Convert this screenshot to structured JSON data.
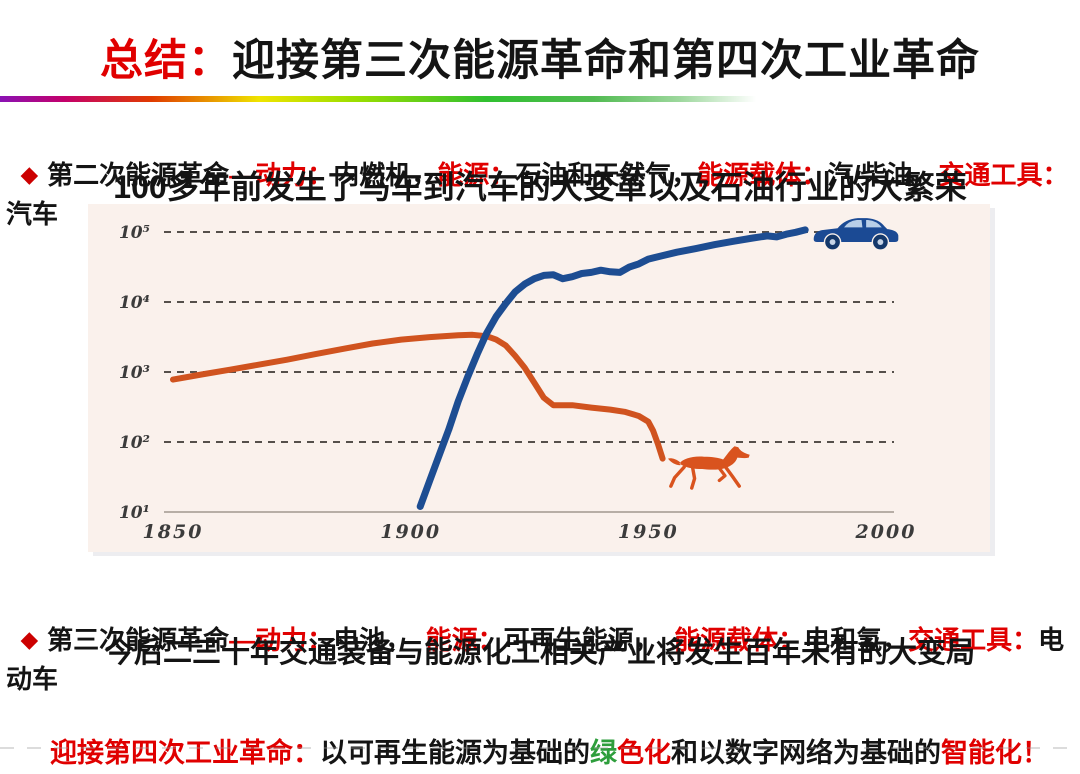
{
  "palette": {
    "emphasis_red": "#e00000",
    "body_black": "#141414",
    "emphasis_green": "#2e9e3c",
    "bullet_red": "#cc0000",
    "chart_background": "#faf1ec",
    "car_line_blue": "#1d4d92",
    "horse_line_orange": "#d0531f"
  },
  "icons": {
    "bullet_marker": "◆",
    "chart_end_car": "car-silhouette",
    "chart_end_horse": "horse-silhouette"
  },
  "title": {
    "prefix": "总结：",
    "main": "迎接第三次能源革命和第四次工业革命"
  },
  "bullets": [
    {
      "marker": "◆",
      "segments": [
        {
          "text": "第二次能源革命",
          "color": "black"
        },
        {
          "text": "—动力：",
          "color": "red"
        },
        {
          "text": "内燃机，",
          "color": "black"
        },
        {
          "text": "能源：",
          "color": "red"
        },
        {
          "text": "石油和天然气，",
          "color": "black"
        },
        {
          "text": "能源载体：",
          "color": "red"
        },
        {
          "text": "汽/柴油，",
          "color": "black"
        },
        {
          "text": "交通工具：",
          "color": "red"
        },
        {
          "text": "汽车",
          "color": "black"
        }
      ],
      "subtitle": "100多年前发生了马车到汽车的大变革以及石油行业的大繁荣"
    },
    {
      "marker": "◆",
      "segments": [
        {
          "text": "第三次能源革命",
          "color": "black"
        },
        {
          "text": "—动力：",
          "color": "red"
        },
        {
          "text": "电池，  ",
          "color": "black"
        },
        {
          "text": "能源：",
          "color": "red"
        },
        {
          "text": "可再生能源，  ",
          "color": "black"
        },
        {
          "text": "能源载体：",
          "color": "red"
        },
        {
          "text": "电和氢，",
          "color": "black"
        },
        {
          "text": "交通工具：",
          "color": "red"
        },
        {
          "text": "电动车",
          "color": "black"
        }
      ],
      "subtitle": "今后二三十年交通装备与能源化工相关产业将发生百年未有的大变局"
    }
  ],
  "footer": {
    "segments": [
      {
        "text": "迎接第四次工业革命：",
        "color": "red"
      },
      {
        "text": "以可再生能源为基础的",
        "color": "black"
      },
      {
        "text": "绿",
        "color": "green"
      },
      {
        "text": "色化",
        "color": "red"
      },
      {
        "text": "和以数字网络为基础的",
        "color": "black"
      },
      {
        "text": "智能化！",
        "color": "red"
      }
    ]
  },
  "chart_data": {
    "type": "line",
    "title": "",
    "xlabel": "",
    "ylabel": "",
    "grid": "horizontal dashed",
    "legend": "none (pictogram markers: car at end of blue line, horse at end of orange line)",
    "x_axis": {
      "scale": "linear",
      "range": [
        1832,
        2019
      ],
      "ticks": [
        {
          "label": "1850",
          "value": 1850
        },
        {
          "label": "1900",
          "value": 1900
        },
        {
          "label": "1950",
          "value": 1950
        },
        {
          "label": "2000",
          "value": 2000
        }
      ]
    },
    "y_axis": {
      "scale": "log",
      "range": [
        10,
        250000
      ],
      "ticks": [
        {
          "label": "10⁵",
          "value": 100000
        },
        {
          "label": "10⁴",
          "value": 10000
        },
        {
          "label": "10³",
          "value": 1000
        },
        {
          "label": "10²",
          "value": 100
        },
        {
          "label": "10¹",
          "value": 10
        }
      ]
    },
    "series": [
      {
        "name": "horses-carriages",
        "color": "#d0531f",
        "stroke_width": 6,
        "icon": "horse",
        "points": [
          [
            1850,
            780
          ],
          [
            1856,
            920
          ],
          [
            1862,
            1080
          ],
          [
            1868,
            1270
          ],
          [
            1874,
            1500
          ],
          [
            1880,
            1800
          ],
          [
            1886,
            2150
          ],
          [
            1892,
            2550
          ],
          [
            1898,
            2900
          ],
          [
            1904,
            3150
          ],
          [
            1910,
            3350
          ],
          [
            1913,
            3400
          ],
          [
            1916,
            3250
          ],
          [
            1918,
            2900
          ],
          [
            1920,
            2400
          ],
          [
            1922,
            1700
          ],
          [
            1924,
            1150
          ],
          [
            1926,
            700
          ],
          [
            1928,
            430
          ],
          [
            1930,
            335
          ],
          [
            1934,
            335
          ],
          [
            1938,
            310
          ],
          [
            1942,
            290
          ],
          [
            1945,
            270
          ],
          [
            1948,
            235
          ],
          [
            1950,
            195
          ],
          [
            1951,
            145
          ],
          [
            1952,
            95
          ],
          [
            1953,
            58
          ]
        ]
      },
      {
        "name": "automobiles",
        "color": "#1d4d92",
        "stroke_width": 7,
        "icon": "car",
        "points": [
          [
            1902,
            12
          ],
          [
            1904,
            28
          ],
          [
            1906,
            65
          ],
          [
            1908,
            150
          ],
          [
            1910,
            380
          ],
          [
            1912,
            850
          ],
          [
            1914,
            1800
          ],
          [
            1916,
            3600
          ],
          [
            1918,
            6200
          ],
          [
            1920,
            9500
          ],
          [
            1922,
            14000
          ],
          [
            1924,
            18000
          ],
          [
            1926,
            21500
          ],
          [
            1928,
            24000
          ],
          [
            1930,
            24500
          ],
          [
            1932,
            21500
          ],
          [
            1934,
            23000
          ],
          [
            1936,
            25500
          ],
          [
            1938,
            26500
          ],
          [
            1940,
            28500
          ],
          [
            1942,
            27000
          ],
          [
            1944,
            26500
          ],
          [
            1946,
            31500
          ],
          [
            1948,
            35000
          ],
          [
            1950,
            41000
          ],
          [
            1953,
            46000
          ],
          [
            1956,
            51500
          ],
          [
            1960,
            58000
          ],
          [
            1964,
            66000
          ],
          [
            1968,
            74000
          ],
          [
            1972,
            82000
          ],
          [
            1975,
            88000
          ],
          [
            1977,
            85000
          ],
          [
            1979,
            93000
          ],
          [
            1981,
            99000
          ],
          [
            1983,
            107000
          ]
        ]
      }
    ]
  }
}
